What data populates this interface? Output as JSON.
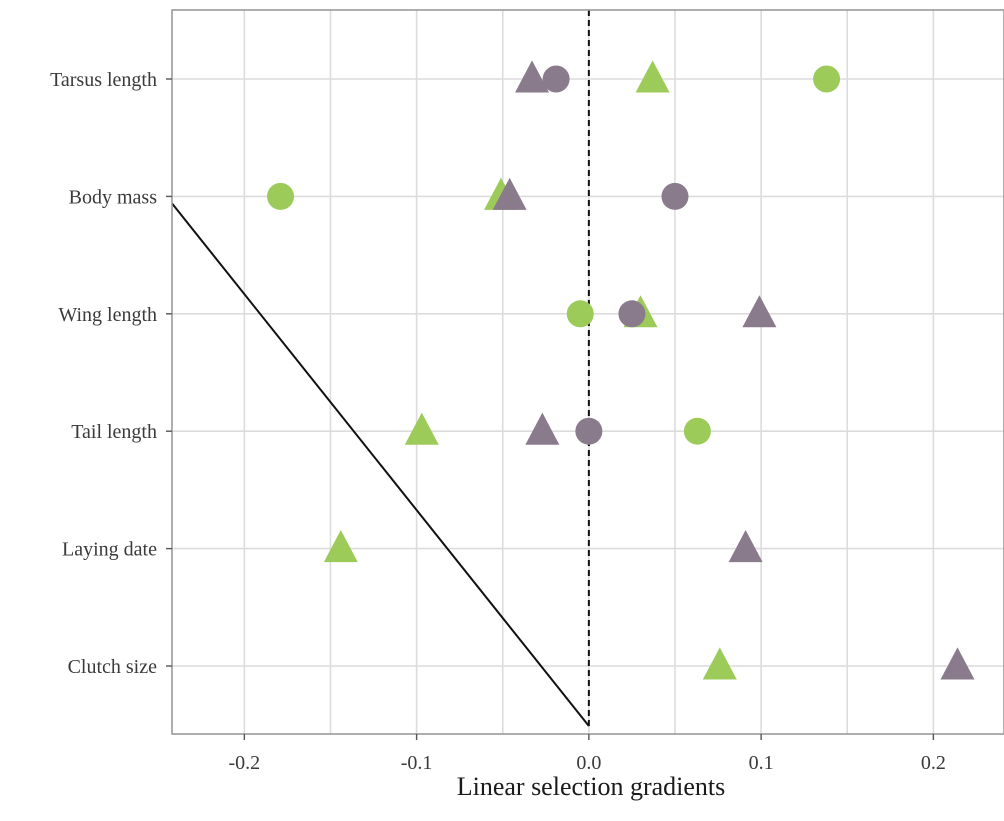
{
  "colors": {
    "green": "#9dcb5a",
    "purple": "#8a7b8c",
    "grid": "#dcdcdc",
    "border": "#9a9a9a"
  },
  "chart_data": {
    "type": "scatter",
    "title": "",
    "xlabel": "Linear selection gradients",
    "ylabel": "",
    "xlim": [
      -0.242,
      0.241
    ],
    "x_ticks": [
      -0.2,
      -0.1,
      0.0,
      0.1,
      0.2
    ],
    "x_tick_labels": [
      "-0.2",
      "-0.1",
      "0.0",
      "0.1",
      "0.2"
    ],
    "categories": [
      "Tarsus length",
      "Body mass",
      "Wing length",
      "Tail length",
      "Laying date",
      "Clutch size"
    ],
    "grid": true,
    "legend": "none",
    "reference_lines": [
      {
        "type": "vertical",
        "style": "dashed",
        "x": 0.0
      },
      {
        "type": "segment",
        "style": "solid",
        "from": {
          "x": -0.242,
          "y": "Body mass"
        },
        "to": {
          "x": 0.0,
          "y": "below Clutch size"
        }
      }
    ],
    "series": [
      {
        "color": "green",
        "shape": "circle",
        "points": [
          {
            "category": "Tarsus length",
            "x": 0.138
          },
          {
            "category": "Body mass",
            "x": -0.179
          },
          {
            "category": "Wing length",
            "x": -0.005
          },
          {
            "category": "Tail length",
            "x": 0.063
          }
        ]
      },
      {
        "color": "green",
        "shape": "triangle",
        "points": [
          {
            "category": "Tarsus length",
            "x": 0.037
          },
          {
            "category": "Body mass",
            "x": -0.051
          },
          {
            "category": "Wing length",
            "x": 0.03
          },
          {
            "category": "Tail length",
            "x": -0.097
          },
          {
            "category": "Laying date",
            "x": -0.144
          },
          {
            "category": "Clutch size",
            "x": 0.076
          }
        ]
      },
      {
        "color": "purple",
        "shape": "circle",
        "points": [
          {
            "category": "Tarsus length",
            "x": -0.019
          },
          {
            "category": "Body mass",
            "x": 0.05
          },
          {
            "category": "Wing length",
            "x": 0.025
          },
          {
            "category": "Tail length",
            "x": 0.0
          }
        ]
      },
      {
        "color": "purple",
        "shape": "triangle",
        "points": [
          {
            "category": "Tarsus length",
            "x": -0.033
          },
          {
            "category": "Body mass",
            "x": -0.046
          },
          {
            "category": "Wing length",
            "x": 0.099
          },
          {
            "category": "Tail length",
            "x": -0.027
          },
          {
            "category": "Laying date",
            "x": 0.091
          },
          {
            "category": "Clutch size",
            "x": 0.214
          }
        ]
      }
    ]
  }
}
